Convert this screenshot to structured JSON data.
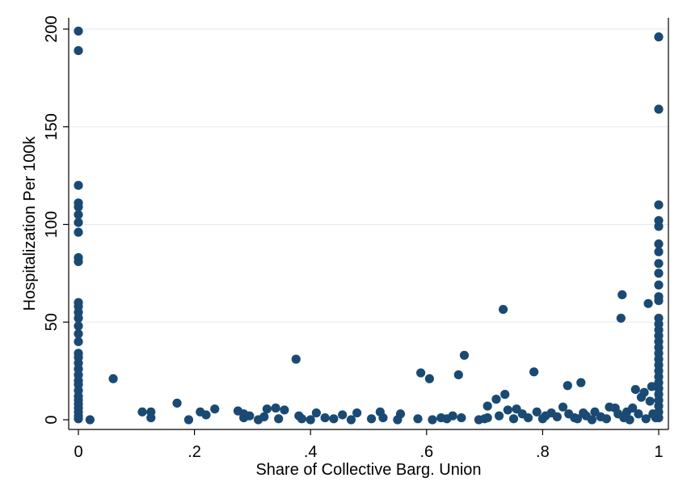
{
  "chart_data": {
    "type": "scatter",
    "xlabel": "Share of Collective Barg. Union",
    "ylabel": "Hospitalization Per 100k",
    "xlim": [
      0,
      1
    ],
    "ylim": [
      0,
      200
    ],
    "x_ticks": [
      0,
      0.2,
      0.4,
      0.6,
      0.8,
      1
    ],
    "x_tick_labels": [
      "0",
      ".2",
      ".4",
      ".6",
      ".8",
      "1"
    ],
    "y_ticks": [
      0,
      50,
      100,
      150,
      200
    ],
    "y_tick_labels": [
      "0",
      "50",
      "100",
      "150",
      "200"
    ],
    "grid": true,
    "marker_color": "#1a4a73",
    "points": [
      [
        0,
        199
      ],
      [
        0,
        189
      ],
      [
        0,
        120
      ],
      [
        0,
        111
      ],
      [
        0,
        109
      ],
      [
        0,
        105
      ],
      [
        0,
        101
      ],
      [
        0,
        96
      ],
      [
        0,
        83
      ],
      [
        0,
        81
      ],
      [
        0,
        60
      ],
      [
        0,
        58
      ],
      [
        0,
        55
      ],
      [
        0,
        52
      ],
      [
        0,
        48
      ],
      [
        0,
        44
      ],
      [
        0,
        40
      ],
      [
        0,
        34
      ],
      [
        0,
        32
      ],
      [
        0,
        29
      ],
      [
        0,
        26
      ],
      [
        0,
        23
      ],
      [
        0,
        20
      ],
      [
        0,
        18
      ],
      [
        0,
        15
      ],
      [
        0,
        12
      ],
      [
        0,
        10
      ],
      [
        0,
        8
      ],
      [
        0,
        6
      ],
      [
        0,
        4
      ],
      [
        0,
        2
      ],
      [
        0,
        0.5
      ],
      [
        0.02,
        0
      ],
      [
        0.06,
        21
      ],
      [
        0.11,
        4
      ],
      [
        0.125,
        4
      ],
      [
        0.125,
        1
      ],
      [
        0.17,
        8.5
      ],
      [
        0.19,
        0
      ],
      [
        0.21,
        4
      ],
      [
        0.22,
        2.5
      ],
      [
        0.235,
        5.5
      ],
      [
        0.275,
        4.5
      ],
      [
        0.285,
        3
      ],
      [
        0.285,
        1
      ],
      [
        0.295,
        2
      ],
      [
        0.31,
        0
      ],
      [
        0.32,
        1.5
      ],
      [
        0.325,
        5.5
      ],
      [
        0.34,
        6
      ],
      [
        0.345,
        0.5
      ],
      [
        0.355,
        5
      ],
      [
        0.375,
        31
      ],
      [
        0.38,
        2
      ],
      [
        0.385,
        0.5
      ],
      [
        0.4,
        0
      ],
      [
        0.41,
        3.5
      ],
      [
        0.425,
        1
      ],
      [
        0.44,
        0.5
      ],
      [
        0.455,
        2.5
      ],
      [
        0.47,
        0
      ],
      [
        0.48,
        3.5
      ],
      [
        0.505,
        0.5
      ],
      [
        0.52,
        4
      ],
      [
        0.525,
        1
      ],
      [
        0.55,
        0
      ],
      [
        0.555,
        3
      ],
      [
        0.585,
        0.5
      ],
      [
        0.59,
        24
      ],
      [
        0.605,
        21
      ],
      [
        0.61,
        0
      ],
      [
        0.625,
        1
      ],
      [
        0.635,
        0.5
      ],
      [
        0.645,
        2
      ],
      [
        0.655,
        23
      ],
      [
        0.66,
        1
      ],
      [
        0.665,
        33
      ],
      [
        0.69,
        0
      ],
      [
        0.7,
        0.5
      ],
      [
        0.705,
        1
      ],
      [
        0.705,
        7
      ],
      [
        0.72,
        10.5
      ],
      [
        0.725,
        2
      ],
      [
        0.732,
        56.5
      ],
      [
        0.735,
        13
      ],
      [
        0.74,
        5
      ],
      [
        0.75,
        0.5
      ],
      [
        0.755,
        5.5
      ],
      [
        0.765,
        3
      ],
      [
        0.775,
        1
      ],
      [
        0.785,
        24.5
      ],
      [
        0.79,
        4
      ],
      [
        0.8,
        0.5
      ],
      [
        0.805,
        2
      ],
      [
        0.815,
        3.5
      ],
      [
        0.825,
        1.5
      ],
      [
        0.835,
        6.5
      ],
      [
        0.843,
        17.5
      ],
      [
        0.845,
        3
      ],
      [
        0.855,
        1
      ],
      [
        0.86,
        0.5
      ],
      [
        0.866,
        19
      ],
      [
        0.87,
        3.5
      ],
      [
        0.875,
        2
      ],
      [
        0.885,
        0
      ],
      [
        0.89,
        4
      ],
      [
        0.9,
        1.5
      ],
      [
        0.91,
        0.5
      ],
      [
        0.915,
        6.5
      ],
      [
        0.925,
        6
      ],
      [
        0.93,
        3
      ],
      [
        0.935,
        52
      ],
      [
        0.937,
        64
      ],
      [
        0.94,
        1
      ],
      [
        0.945,
        4
      ],
      [
        0.95,
        0
      ],
      [
        0.955,
        6
      ],
      [
        0.96,
        15.5
      ],
      [
        0.965,
        3
      ],
      [
        0.97,
        11.5
      ],
      [
        0.975,
        14
      ],
      [
        0.978,
        0.5
      ],
      [
        0.982,
        59.5
      ],
      [
        0.985,
        9.5
      ],
      [
        0.988,
        17
      ],
      [
        0.99,
        3
      ],
      [
        0.995,
        1
      ],
      [
        1,
        196
      ],
      [
        1,
        159
      ],
      [
        1,
        110
      ],
      [
        1,
        102
      ],
      [
        1,
        99
      ],
      [
        1,
        90
      ],
      [
        1,
        86
      ],
      [
        1,
        80
      ],
      [
        1,
        75
      ],
      [
        1,
        69
      ],
      [
        1,
        63
      ],
      [
        1,
        61
      ],
      [
        1,
        52
      ],
      [
        1,
        49
      ],
      [
        1,
        46
      ],
      [
        1,
        43
      ],
      [
        1,
        40
      ],
      [
        1,
        37
      ],
      [
        1,
        34
      ],
      [
        1,
        31
      ],
      [
        1,
        28
      ],
      [
        1,
        25
      ],
      [
        1,
        22
      ],
      [
        1,
        19
      ],
      [
        1,
        16
      ],
      [
        1,
        13
      ],
      [
        1,
        10
      ],
      [
        1,
        7
      ],
      [
        1,
        4
      ],
      [
        1,
        1
      ]
    ]
  }
}
